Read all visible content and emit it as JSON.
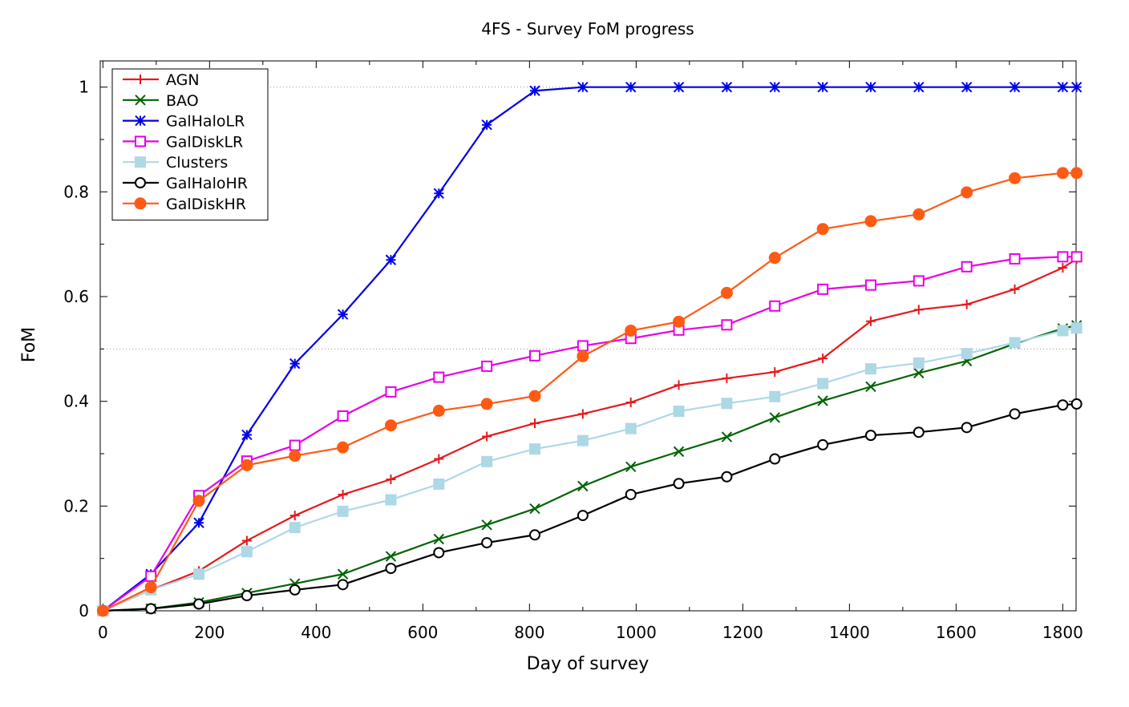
{
  "chart_data": {
    "type": "line",
    "title": "4FS - Survey FoM progress",
    "xlabel": "Day of survey",
    "ylabel": "FoM",
    "xlim": [
      -5,
      1825
    ],
    "ylim": [
      0,
      1.05
    ],
    "xticks": [
      0,
      200,
      400,
      600,
      800,
      1000,
      1200,
      1400,
      1600,
      1800
    ],
    "yticks": [
      0,
      0.2,
      0.4,
      0.6,
      0.8,
      1
    ],
    "grid": "dotted horizontal lines at 0.5 and 1",
    "legend_position": "top-left",
    "x": [
      0,
      90,
      180,
      270,
      360,
      450,
      540,
      630,
      720,
      810,
      900,
      990,
      1080,
      1170,
      1260,
      1350,
      1440,
      1530,
      1620,
      1710,
      1800,
      1826
    ],
    "series": [
      {
        "name": "AGN",
        "color": "#e41a1c",
        "marker": "plus",
        "values": [
          0,
          0.04,
          0.076,
          0.134,
          0.182,
          0.222,
          0.251,
          0.29,
          0.333,
          0.358,
          0.376,
          0.398,
          0.431,
          0.444,
          0.456,
          0.482,
          0.553,
          0.575,
          0.585,
          0.614,
          0.655,
          0.672
        ]
      },
      {
        "name": "BAO",
        "color": "#006400",
        "marker": "cross",
        "values": [
          0,
          0.004,
          0.016,
          0.034,
          0.052,
          0.07,
          0.104,
          0.137,
          0.164,
          0.195,
          0.238,
          0.275,
          0.304,
          0.332,
          0.369,
          0.401,
          0.428,
          0.454,
          0.477,
          0.51,
          0.539,
          0.545
        ]
      },
      {
        "name": "GalHaloLR",
        "color": "#0000e6",
        "marker": "star",
        "values": [
          0,
          0.07,
          0.168,
          0.336,
          0.472,
          0.566,
          0.67,
          0.797,
          0.928,
          0.993,
          1,
          1,
          1,
          1,
          1,
          1,
          1,
          1,
          1,
          1,
          1,
          1
        ]
      },
      {
        "name": "GalDiskLR",
        "color": "#e600e6",
        "marker": "square-open",
        "values": [
          0,
          0.066,
          0.22,
          0.286,
          0.316,
          0.372,
          0.418,
          0.446,
          0.467,
          0.487,
          0.506,
          0.52,
          0.536,
          0.546,
          0.582,
          0.614,
          0.622,
          0.63,
          0.657,
          0.672,
          0.676,
          0.676
        ]
      },
      {
        "name": "Clusters",
        "color": "#add8e6",
        "marker": "square-filled",
        "values": [
          0,
          0.04,
          0.07,
          0.113,
          0.159,
          0.19,
          0.212,
          0.242,
          0.285,
          0.309,
          0.325,
          0.348,
          0.381,
          0.396,
          0.409,
          0.434,
          0.462,
          0.473,
          0.491,
          0.512,
          0.535,
          0.54
        ]
      },
      {
        "name": "GalHaloHR",
        "color": "#000000",
        "marker": "circle-open",
        "values": [
          0,
          0.004,
          0.013,
          0.029,
          0.04,
          0.05,
          0.081,
          0.111,
          0.13,
          0.145,
          0.182,
          0.222,
          0.243,
          0.256,
          0.29,
          0.317,
          0.335,
          0.341,
          0.35,
          0.376,
          0.393,
          0.395
        ]
      },
      {
        "name": "GalDiskHR",
        "color": "#ff5a14",
        "marker": "circle-filled",
        "values": [
          0,
          0.045,
          0.21,
          0.278,
          0.296,
          0.312,
          0.354,
          0.382,
          0.395,
          0.41,
          0.486,
          0.535,
          0.552,
          0.607,
          0.674,
          0.729,
          0.744,
          0.757,
          0.799,
          0.826,
          0.836,
          0.836
        ]
      }
    ]
  }
}
